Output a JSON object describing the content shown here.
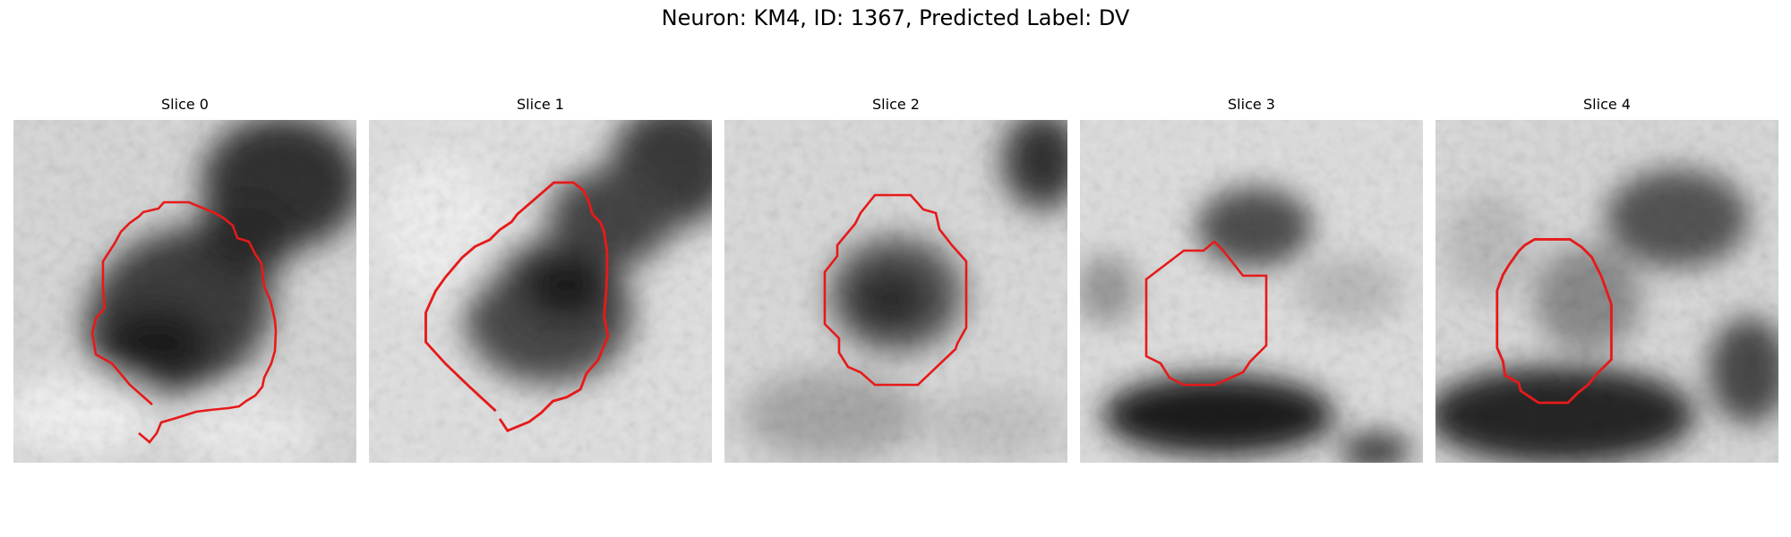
{
  "figure": {
    "title": "Neuron: KM4, ID: 1367, Predicted Label: DV",
    "outline_color": "#e61a1a"
  },
  "slices": [
    {
      "label": "Slice 0"
    },
    {
      "label": "Slice 1"
    },
    {
      "label": "Slice 2"
    },
    {
      "label": "Slice 3"
    },
    {
      "label": "Slice 4"
    }
  ]
}
